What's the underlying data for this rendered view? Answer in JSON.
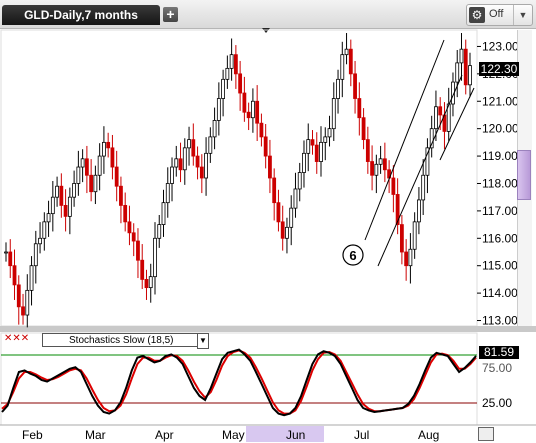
{
  "header": {
    "tab_title": "GLD-Daily,7 months",
    "add_label": "+",
    "off_label": "Off",
    "off_icon": "chart-tools-icon"
  },
  "price_axis": {
    "ticks": [
      "123.00",
      "122.00",
      "121.00",
      "120.00",
      "119.00",
      "118.00",
      "117.00",
      "116.00",
      "115.00",
      "114.00",
      "113.00"
    ],
    "last_price": "122.30"
  },
  "annotation": {
    "circle_label": "6"
  },
  "stochastic": {
    "legend": "Stochastics Slow (18,5)",
    "ticks": [
      "25.00",
      "75.00"
    ],
    "last_value": "81.59"
  },
  "time_axis": {
    "months": [
      "Feb",
      "Mar",
      "Apr",
      "May",
      "Jun",
      "Jul",
      "Aug"
    ]
  },
  "chart_data": {
    "type": "ohlc",
    "price_range": [
      112.8,
      123.6
    ],
    "stoch_range": [
      0,
      100
    ],
    "colors": {
      "up": "#000000",
      "down": "#cc0000",
      "k_line": "#000000",
      "d_line": "#dd0000",
      "upper_band": "#008800",
      "lower_band": "#880000"
    },
    "prices": [
      115.5,
      115.0,
      114.3,
      113.5,
      113.2,
      114.1,
      115.0,
      115.8,
      116.0,
      116.6,
      116.9,
      117.5,
      117.9,
      117.2,
      116.8,
      117.5,
      118.0,
      118.6,
      118.9,
      118.3,
      117.7,
      118.3,
      119.0,
      119.5,
      119.3,
      118.6,
      117.9,
      117.2,
      116.6,
      116.2,
      115.9,
      115.2,
      114.5,
      114.2,
      114.6,
      116.0,
      116.5,
      117.3,
      118.0,
      118.6,
      118.9,
      118.5,
      119.3,
      119.6,
      119.0,
      118.6,
      118.2,
      119.1,
      119.7,
      120.3,
      121.1,
      121.8,
      122.2,
      122.7,
      122.0,
      121.3,
      120.6,
      120.4,
      121.0,
      120.2,
      119.7,
      119.0,
      118.2,
      117.3,
      116.6,
      116.0,
      116.4,
      117.1,
      117.8,
      118.4,
      119.1,
      119.6,
      119.4,
      118.8,
      119.5,
      119.7,
      120.0,
      121.1,
      121.8,
      122.7,
      122.9,
      122.0,
      121.1,
      120.4,
      119.6,
      118.8,
      118.3,
      118.7,
      118.9,
      118.5,
      118.2,
      117.6,
      116.5,
      115.5,
      115.0,
      115.6,
      116.6,
      117.4,
      118.3,
      119.3,
      120.0,
      120.8,
      120.5,
      119.9,
      120.9,
      121.7,
      122.4,
      122.9,
      121.6,
      122.3
    ],
    "stoch_k": [
      10,
      18,
      40,
      60,
      62,
      58,
      55,
      50,
      48,
      52,
      56,
      60,
      64,
      66,
      60,
      45,
      30,
      18,
      10,
      8,
      12,
      22,
      40,
      62,
      78,
      80,
      76,
      72,
      74,
      80,
      82,
      78,
      70,
      55,
      40,
      30,
      25,
      40,
      58,
      76,
      84,
      86,
      88,
      82,
      74,
      60,
      45,
      30,
      15,
      8,
      6,
      8,
      15,
      30,
      50,
      70,
      82,
      86,
      84,
      80,
      70,
      55,
      40,
      25,
      15,
      12,
      10,
      11,
      12,
      13,
      14,
      15,
      20,
      30,
      45,
      62,
      78,
      84,
      82,
      80,
      70,
      60,
      65,
      72,
      80
    ],
    "stoch_d": [
      14,
      20,
      35,
      52,
      60,
      60,
      57,
      53,
      50,
      51,
      54,
      58,
      62,
      64,
      62,
      52,
      38,
      25,
      15,
      11,
      12,
      18,
      32,
      52,
      70,
      78,
      78,
      74,
      74,
      78,
      81,
      80,
      74,
      62,
      48,
      36,
      28,
      35,
      50,
      68,
      80,
      85,
      87,
      84,
      78,
      66,
      52,
      37,
      22,
      12,
      8,
      8,
      12,
      24,
      42,
      62,
      76,
      84,
      85,
      82,
      74,
      60,
      46,
      32,
      20,
      14,
      11,
      11,
      12,
      13,
      14,
      15,
      18,
      26,
      40,
      56,
      72,
      82,
      83,
      81,
      74,
      64,
      64,
      70,
      78
    ]
  }
}
